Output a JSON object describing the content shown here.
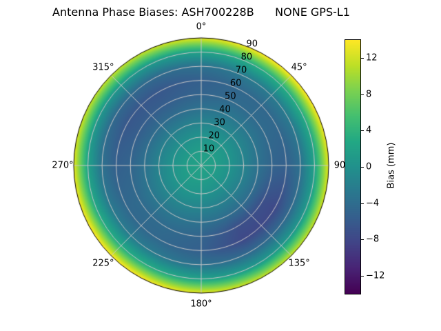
{
  "title": "Antenna Phase Biases: ASH700228B      NONE GPS-L1",
  "chart_data": {
    "type": "heatmap",
    "projection": "polar",
    "title": "Antenna Phase Biases: ASH700228B      NONE GPS-L1",
    "theta_zero_location": "top",
    "theta_direction": "clockwise",
    "theta_tick_angles": [
      0,
      45,
      90,
      135,
      180,
      225,
      270,
      315
    ],
    "theta_tick_labels": [
      "0°",
      "45°",
      "90",
      "135°",
      "180°",
      "225°",
      "270°",
      "315°"
    ],
    "r_max": 90,
    "r_tick_values": [
      10,
      20,
      30,
      40,
      50,
      60,
      70,
      80,
      90
    ],
    "r_label_azimuth_deg": 22.5,
    "grid_color": "#c8c8c8",
    "outline_color": "#000000",
    "colorbar": {
      "label": "Bias (mm)",
      "vmin": -14,
      "vmax": 14,
      "ticks": [
        12,
        8,
        4,
        0,
        -4,
        -8,
        -12
      ],
      "tick_labels": [
        "12",
        "8",
        "4",
        "0",
        "−4",
        "−8",
        "−12"
      ]
    },
    "colormap": {
      "name": "viridis",
      "stops": [
        [
          0.0,
          "#440154"
        ],
        [
          0.1,
          "#482475"
        ],
        [
          0.2,
          "#414487"
        ],
        [
          0.3,
          "#355f8d"
        ],
        [
          0.4,
          "#2a788e"
        ],
        [
          0.5,
          "#21918c"
        ],
        [
          0.6,
          "#22a884"
        ],
        [
          0.7,
          "#44bf70"
        ],
        [
          0.8,
          "#7ad151"
        ],
        [
          0.9,
          "#bddf26"
        ],
        [
          1.0,
          "#fde725"
        ]
      ]
    },
    "field": {
      "zenith_deg": [
        0,
        10,
        20,
        30,
        40,
        50,
        60,
        70,
        80,
        90
      ],
      "azimuth_deg": [
        0,
        30,
        60,
        90,
        120,
        150,
        180,
        210,
        240,
        270,
        300,
        330
      ],
      "values": [
        [
          2.0,
          2.0,
          2.0,
          2.0,
          2.0,
          2.0,
          2.0,
          2.0,
          2.0,
          2.0,
          2.0,
          2.0
        ],
        [
          1.5,
          1.6,
          1.6,
          1.5,
          1.4,
          1.4,
          1.5,
          1.6,
          1.6,
          1.5,
          1.4,
          1.4
        ],
        [
          0.3,
          0.6,
          0.6,
          0.3,
          0.0,
          0.0,
          0.3,
          0.6,
          0.6,
          0.3,
          0.0,
          0.0
        ],
        [
          -1.5,
          -1.1,
          -1.1,
          -1.5,
          -1.9,
          -1.9,
          -1.5,
          -1.1,
          -1.1,
          -1.5,
          -1.9,
          -1.9
        ],
        [
          -3.5,
          -2.9,
          -2.9,
          -3.5,
          -4.1,
          -4.1,
          -3.5,
          -2.9,
          -2.9,
          -3.5,
          -4.1,
          -4.1
        ],
        [
          -5.0,
          -4.3,
          -4.3,
          -5.0,
          -7.2,
          -7.2,
          -5.0,
          -4.3,
          -4.3,
          -5.0,
          -5.7,
          -5.7
        ],
        [
          -5.5,
          -4.6,
          -4.6,
          -5.5,
          -7.9,
          -7.9,
          -5.5,
          -4.6,
          -4.6,
          -5.5,
          -6.4,
          -6.4
        ],
        [
          -3.5,
          -2.5,
          -2.5,
          -3.5,
          -4.5,
          -4.5,
          -3.5,
          -2.5,
          -2.5,
          -3.5,
          -4.5,
          -4.5
        ],
        [
          2.0,
          3.2,
          3.2,
          2.0,
          0.8,
          0.8,
          2.0,
          3.2,
          3.2,
          2.0,
          0.8,
          0.8
        ],
        [
          13.0,
          14.3,
          14.3,
          13.0,
          11.7,
          11.7,
          13.0,
          14.3,
          14.3,
          13.0,
          11.7,
          11.7
        ]
      ]
    }
  }
}
